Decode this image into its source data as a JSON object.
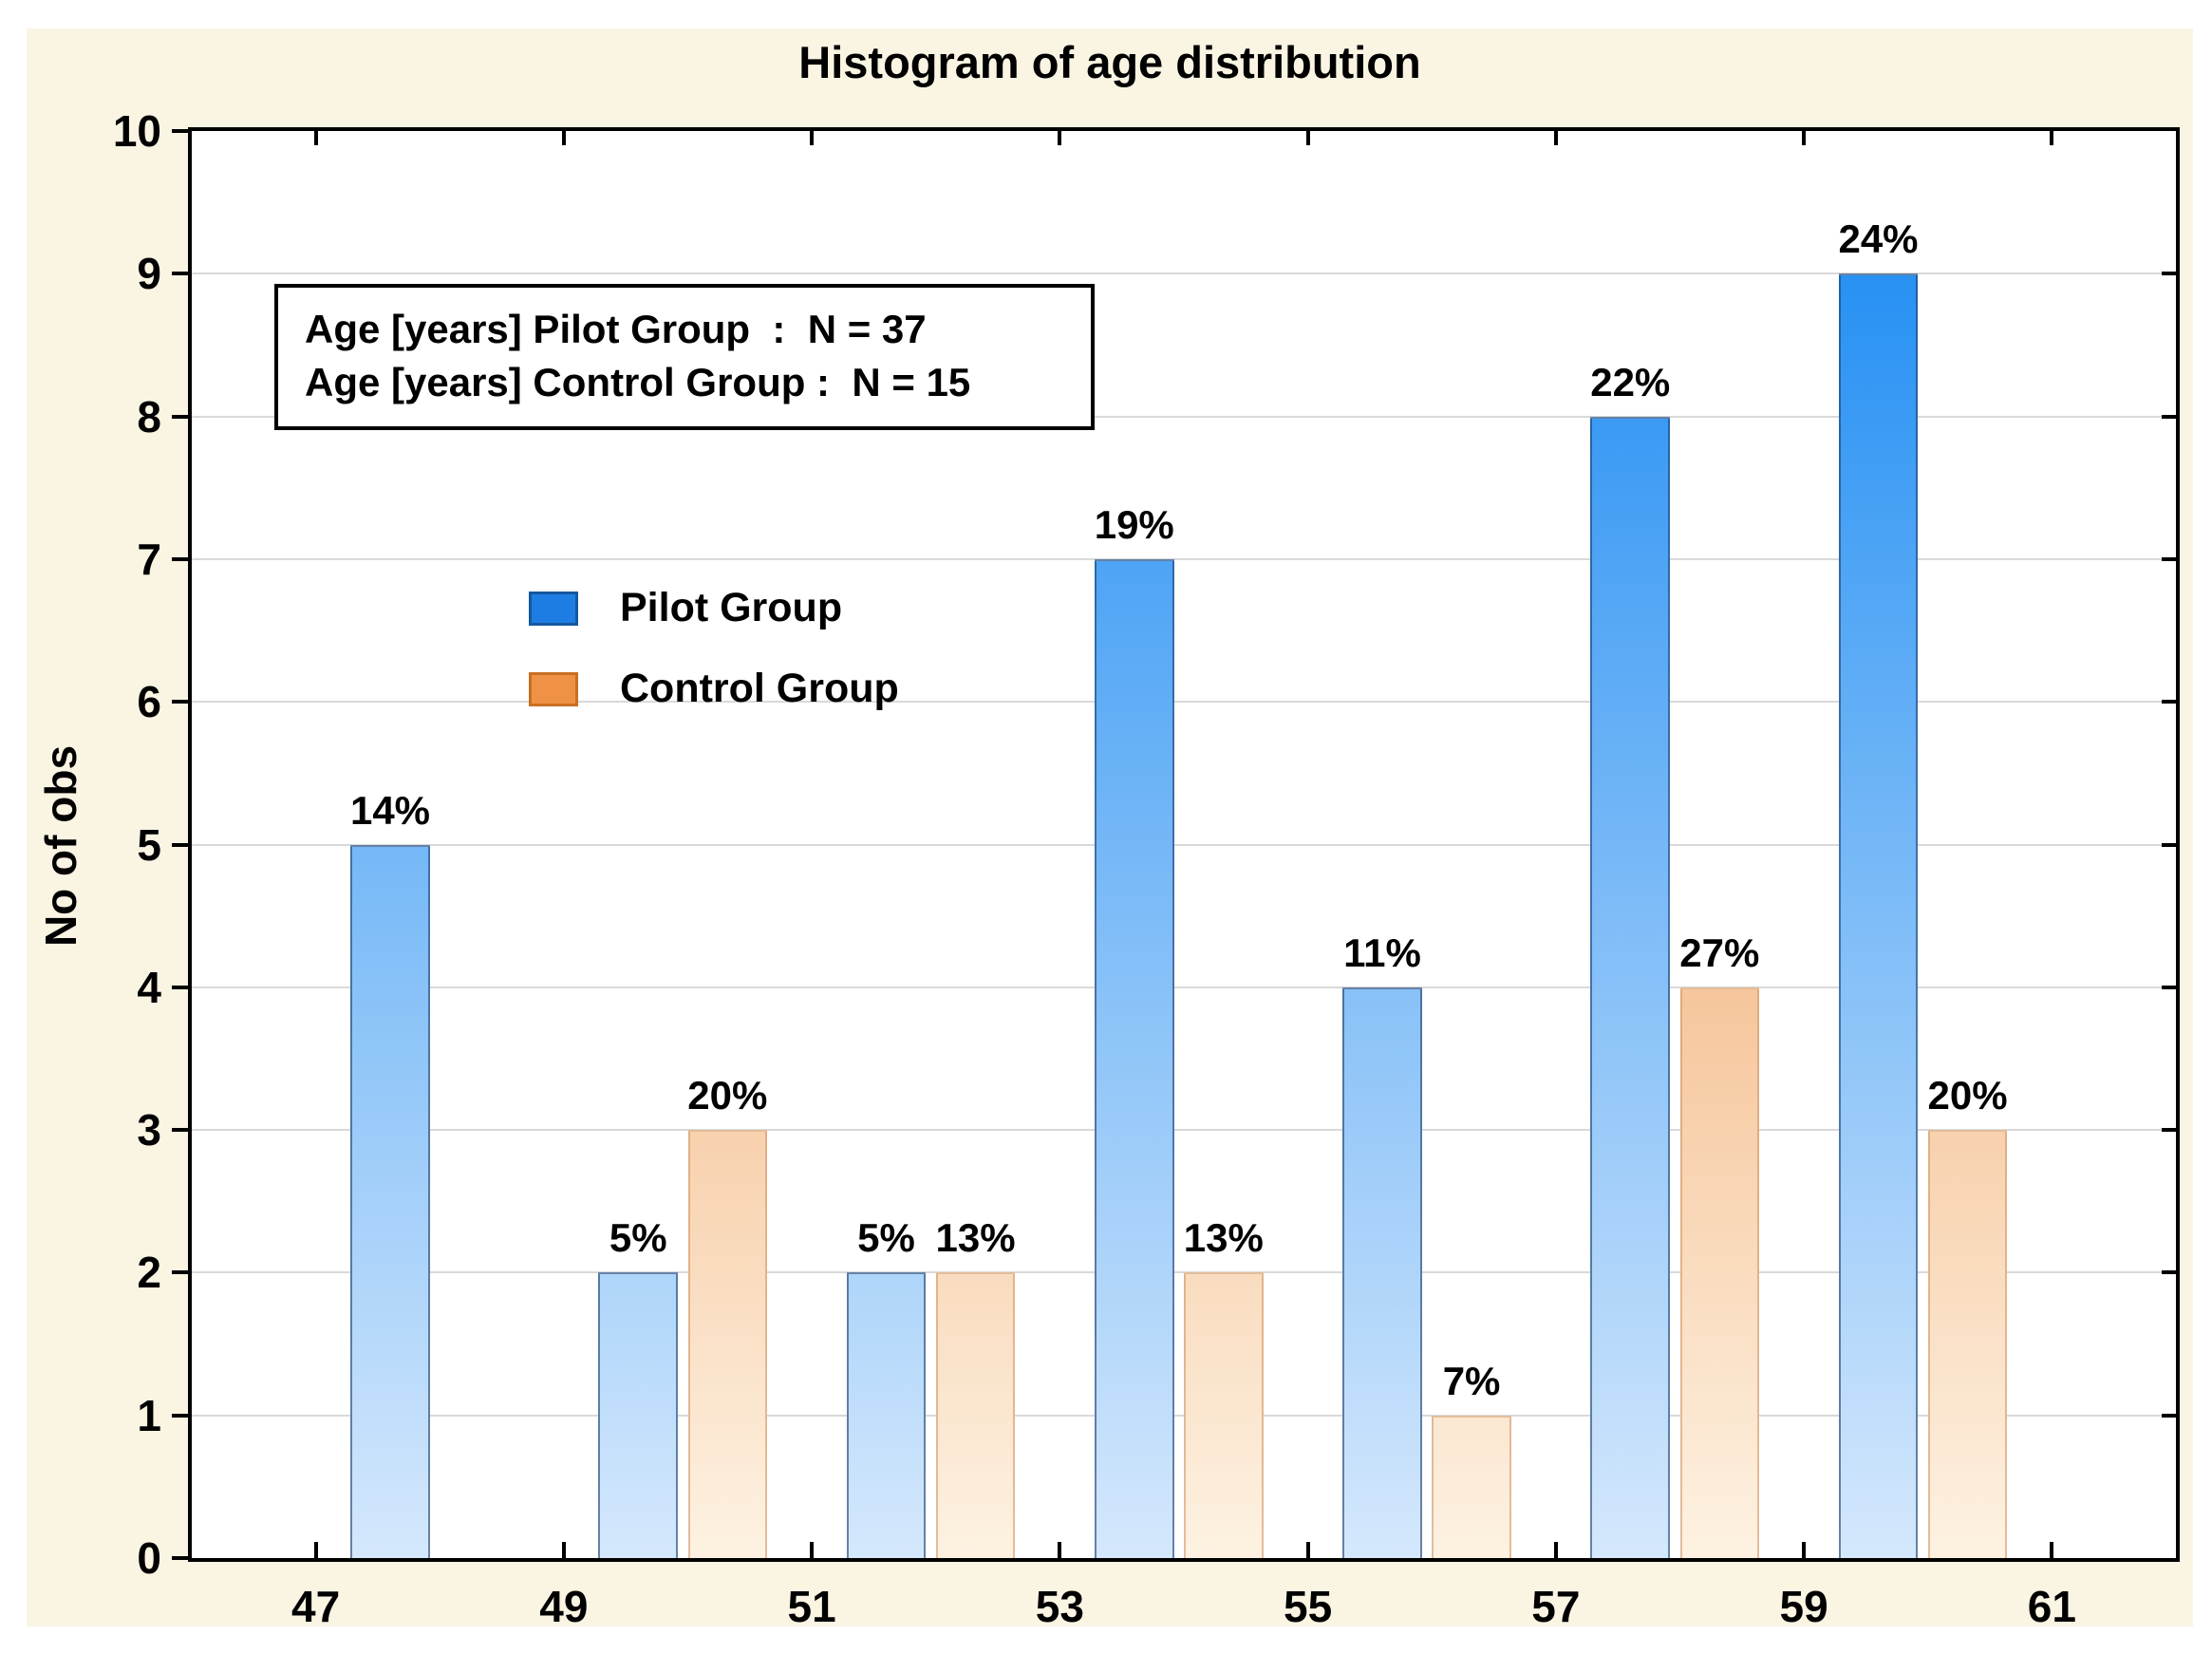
{
  "title": "Histogram of age distribution",
  "y_axis_title": "No of obs",
  "stats_box": {
    "line_pilot": "Age [years] Pilot Group  :  N = 37",
    "line_control": "Age [years] Control Group :  N = 15"
  },
  "legend": {
    "items": [
      {
        "label": "Pilot Group",
        "swatch_color": "#1e7de2",
        "swatch_border": "#15589f"
      },
      {
        "label": "Control Group",
        "swatch_color": "#ef9248",
        "swatch_border": "#c96f22"
      }
    ]
  },
  "colors": {
    "figure_bg": "#faf4e3",
    "plot_bg": "#ffffff",
    "gridline": "#d9d9d9",
    "axis": "#000000",
    "pilot_gradient_top": "#1487f2",
    "pilot_gradient_bottom": "#d5e8fc",
    "pilot_edge": "rgba(28,62,108,0.6)",
    "control_gradient_top": "#eb8434",
    "control_gradient_bottom": "#fdf2e2",
    "control_edge": "rgba(205,145,95,0.55)"
  },
  "chart_data": {
    "type": "bar",
    "title": "Histogram of age distribution",
    "xlabel": "",
    "ylabel": "No of obs",
    "ylim": [
      0,
      10
    ],
    "xlim": [
      46,
      62
    ],
    "y_ticks": [
      0,
      1,
      2,
      3,
      4,
      5,
      6,
      7,
      8,
      9,
      10
    ],
    "x_labeled_ticks": [
      47,
      49,
      51,
      53,
      55,
      57,
      59,
      61
    ],
    "grid": "horizontal-only",
    "legend_position": "inside upper-left",
    "annotation": "Age [years] Pilot Group : N = 37 / Age [years] Control Group : N = 15",
    "bar_width_years": 0.64,
    "series": [
      {
        "name": "Pilot Group",
        "n": 37,
        "bars": [
          {
            "x_left": 47.28,
            "count": 5,
            "label": "14%"
          },
          {
            "x_left": 49.28,
            "count": 2,
            "label": "5%"
          },
          {
            "x_left": 51.28,
            "count": 2,
            "label": "5%"
          },
          {
            "x_left": 53.28,
            "count": 7,
            "label": "19%"
          },
          {
            "x_left": 55.28,
            "count": 4,
            "label": "11%"
          },
          {
            "x_left": 57.28,
            "count": 8,
            "label": "22%"
          },
          {
            "x_left": 59.28,
            "count": 9,
            "label": "24%"
          }
        ]
      },
      {
        "name": "Control Group",
        "n": 15,
        "bars": [
          {
            "x_left": 50.0,
            "count": 3,
            "label": "20%"
          },
          {
            "x_left": 52.0,
            "count": 2,
            "label": "13%"
          },
          {
            "x_left": 54.0,
            "count": 2,
            "label": "13%"
          },
          {
            "x_left": 56.0,
            "count": 1,
            "label": "7%"
          },
          {
            "x_left": 58.0,
            "count": 4,
            "label": "27%"
          },
          {
            "x_left": 60.0,
            "count": 3,
            "label": "20%"
          }
        ]
      }
    ]
  }
}
